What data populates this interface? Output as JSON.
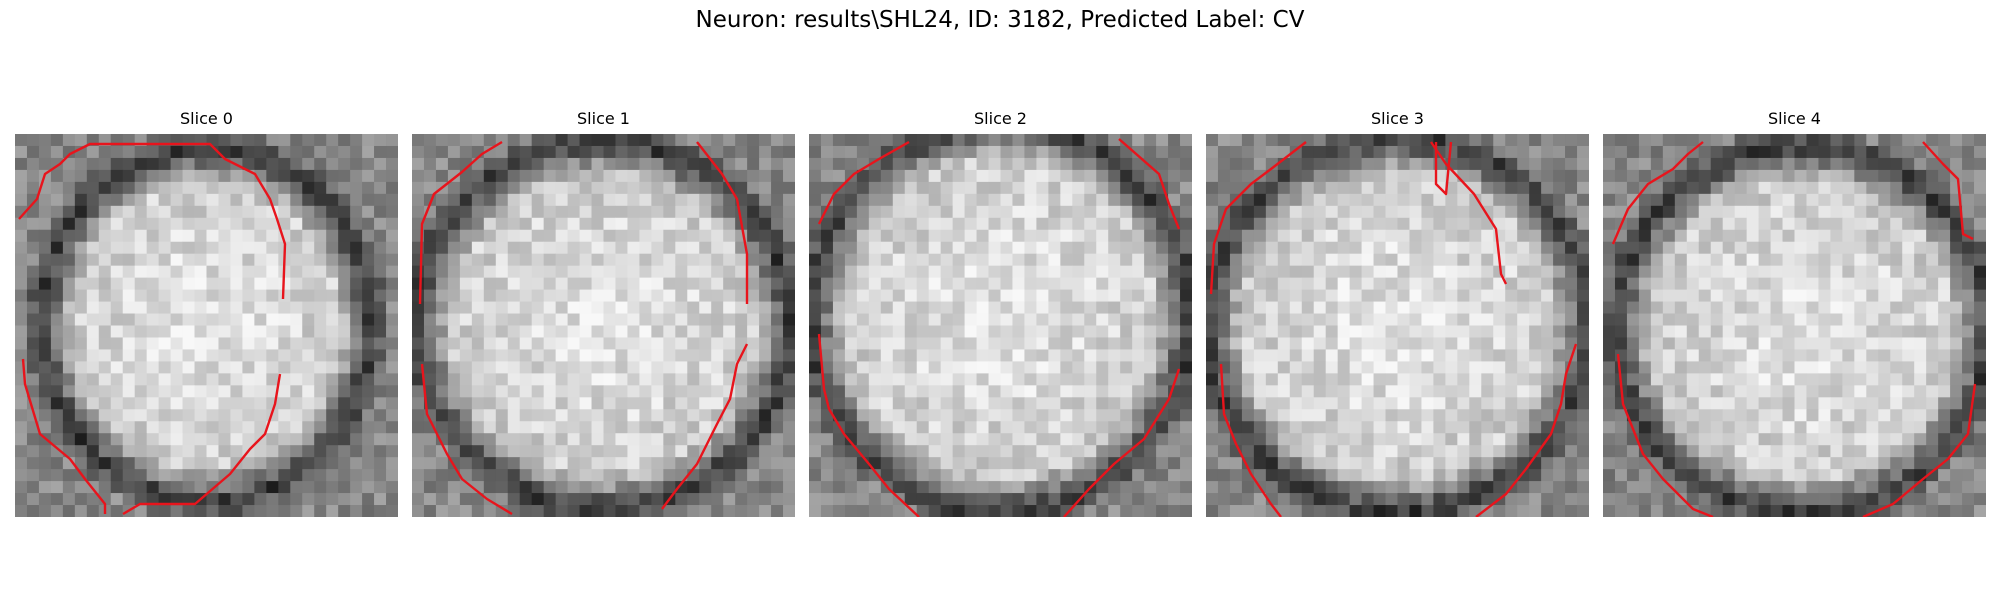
{
  "figure": {
    "title": "Neuron: results\\SHL24, ID: 3182, Predicted Label: CV"
  },
  "colors": {
    "contour": "#e8141c",
    "background": "#ffffff"
  },
  "slices": [
    {
      "title": "Slice 0"
    },
    {
      "title": "Slice 1"
    },
    {
      "title": "Slice 2"
    },
    {
      "title": "Slice 3"
    },
    {
      "title": "Slice 4"
    }
  ]
}
